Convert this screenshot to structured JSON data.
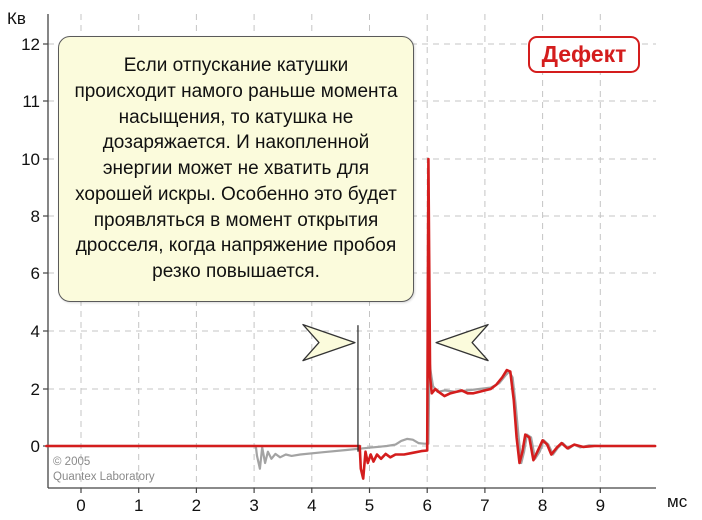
{
  "chart_data": {
    "type": "line",
    "ylabel": "Кв",
    "xlabel": "мс",
    "x_ticks": [
      0,
      1,
      2,
      3,
      4,
      5,
      6,
      7,
      8,
      9
    ],
    "y_ticks": [
      0,
      2,
      4,
      6,
      8,
      10,
      11,
      12
    ],
    "xlim": [
      -0.6,
      9.95
    ],
    "grid": true,
    "series": [
      {
        "color": "#a3a3a3",
        "points": [
          [
            -0.6,
            0
          ],
          [
            3.03,
            0
          ],
          [
            3.05,
            -0.35
          ],
          [
            3.1,
            -0.8
          ],
          [
            3.14,
            -0.05
          ],
          [
            3.19,
            -0.6
          ],
          [
            3.24,
            -0.2
          ],
          [
            3.3,
            -0.45
          ],
          [
            3.37,
            -0.28
          ],
          [
            3.45,
            -0.4
          ],
          [
            3.55,
            -0.3
          ],
          [
            3.65,
            -0.35
          ],
          [
            3.8,
            -0.3
          ],
          [
            4.2,
            -0.22
          ],
          [
            4.6,
            -0.14
          ],
          [
            5.0,
            -0.06
          ],
          [
            5.3,
            0.0
          ],
          [
            5.45,
            0.05
          ],
          [
            5.55,
            0.18
          ],
          [
            5.65,
            0.25
          ],
          [
            5.75,
            0.22
          ],
          [
            5.85,
            0.1
          ],
          [
            5.95,
            0.08
          ],
          [
            6.02,
            0.08
          ],
          [
            6.04,
            3.0
          ],
          [
            6.06,
            2.6
          ],
          [
            6.1,
            2.1
          ],
          [
            6.18,
            1.9
          ],
          [
            6.3,
            1.95
          ],
          [
            6.5,
            1.9
          ],
          [
            6.7,
            1.95
          ],
          [
            6.9,
            2.0
          ],
          [
            7.1,
            2.05
          ],
          [
            7.25,
            2.2
          ],
          [
            7.35,
            2.45
          ],
          [
            7.42,
            2.6
          ],
          [
            7.48,
            2.4
          ],
          [
            7.53,
            1.5
          ],
          [
            7.58,
            0.4
          ],
          [
            7.63,
            -0.6
          ],
          [
            7.68,
            -0.2
          ],
          [
            7.73,
            0.4
          ],
          [
            7.8,
            0.3
          ],
          [
            7.87,
            -0.45
          ],
          [
            7.95,
            -0.2
          ],
          [
            8.02,
            0.2
          ],
          [
            8.1,
            0.05
          ],
          [
            8.18,
            -0.3
          ],
          [
            8.27,
            -0.05
          ],
          [
            8.35,
            0.1
          ],
          [
            8.45,
            -0.1
          ],
          [
            8.55,
            0.05
          ],
          [
            8.65,
            -0.05
          ],
          [
            8.8,
            0.02
          ],
          [
            9.0,
            0
          ],
          [
            9.95,
            0
          ]
        ]
      },
      {
        "color": "#d41d1d",
        "points": [
          [
            -0.6,
            0
          ],
          [
            4.83,
            0
          ],
          [
            4.85,
            -0.8
          ],
          [
            4.89,
            -1.15
          ],
          [
            4.93,
            -0.2
          ],
          [
            4.97,
            -0.6
          ],
          [
            5.02,
            -0.3
          ],
          [
            5.07,
            -0.55
          ],
          [
            5.13,
            -0.3
          ],
          [
            5.2,
            -0.45
          ],
          [
            5.28,
            -0.28
          ],
          [
            5.36,
            -0.4
          ],
          [
            5.45,
            -0.3
          ],
          [
            5.6,
            -0.3
          ],
          [
            5.75,
            -0.24
          ],
          [
            5.9,
            -0.18
          ],
          [
            6.0,
            -0.16
          ],
          [
            6.02,
            10.0
          ],
          [
            6.05,
            2.4
          ],
          [
            6.08,
            1.85
          ],
          [
            6.14,
            2.0
          ],
          [
            6.2,
            1.9
          ],
          [
            6.3,
            1.75
          ],
          [
            6.4,
            1.85
          ],
          [
            6.5,
            1.9
          ],
          [
            6.6,
            1.95
          ],
          [
            6.7,
            1.85
          ],
          [
            6.8,
            1.85
          ],
          [
            6.9,
            1.9
          ],
          [
            7.0,
            1.95
          ],
          [
            7.1,
            2.0
          ],
          [
            7.2,
            2.15
          ],
          [
            7.3,
            2.4
          ],
          [
            7.38,
            2.65
          ],
          [
            7.44,
            2.6
          ],
          [
            7.5,
            1.6
          ],
          [
            7.55,
            0.3
          ],
          [
            7.6,
            -0.6
          ],
          [
            7.65,
            -0.2
          ],
          [
            7.7,
            0.4
          ],
          [
            7.77,
            0.3
          ],
          [
            7.84,
            -0.5
          ],
          [
            7.92,
            -0.15
          ],
          [
            8.0,
            0.2
          ],
          [
            8.08,
            0.05
          ],
          [
            8.15,
            -0.3
          ],
          [
            8.25,
            -0.05
          ],
          [
            8.33,
            0.1
          ],
          [
            8.43,
            -0.08
          ],
          [
            8.55,
            0.05
          ],
          [
            8.7,
            -0.03
          ],
          [
            8.9,
            0
          ],
          [
            9.95,
            0
          ]
        ]
      }
    ],
    "markers": [
      {
        "type": "vline",
        "x": 4.8,
        "y_from": -0.2,
        "y_to": 4.2,
        "color": "#222222"
      },
      {
        "type": "arrow-right",
        "x": 4.8,
        "y": 3.6
      },
      {
        "type": "arrow-left",
        "x": 6.05,
        "y": 3.6
      }
    ]
  },
  "callout": {
    "text": "Если отпускание катушки происходит намого раньше момента насыщения, то катушка не дозаряжается. И накопленной энергии может не хватить для хорошей искры. Особенно это будет проявляться в момент открытия дросселя, когда напряжение пробоя резко повышается."
  },
  "badge": {
    "label": "Дефект",
    "color": "#d41d1d"
  },
  "copyright": {
    "line1": "© 2005",
    "line2": "Quantex Laboratory"
  }
}
